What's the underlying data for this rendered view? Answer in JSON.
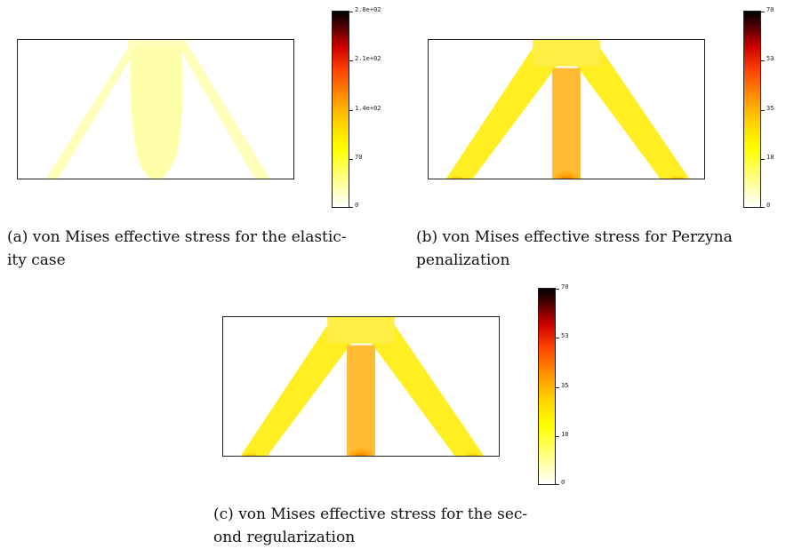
{
  "figure": {
    "panels": [
      {
        "id": "a",
        "caption": "(a) von Mises effective stress for the elastic-ity case",
        "caption_line1": "(a) von Mises effective stress for the elastic-",
        "caption_line2": "ity case",
        "colorbar_ticks": [
          "2.8e+02",
          "2.1e+02",
          "1.4e+02",
          "70",
          "0"
        ]
      },
      {
        "id": "b",
        "caption": "(b) von Mises effective stress for Perzyna penalization",
        "caption_line1": "(b) von Mises effective stress for Perzyna",
        "caption_line2": "penalization",
        "colorbar_ticks": [
          "70",
          "53",
          "35",
          "18",
          "0"
        ]
      },
      {
        "id": "c",
        "caption": "(c) von Mises effective stress for the second regularization",
        "caption_line1": "(c) von Mises effective stress for the sec-",
        "caption_line2": "ond regularization",
        "colorbar_ticks": [
          "70",
          "53",
          "35",
          "18",
          "0"
        ]
      }
    ],
    "colors": {
      "low": "#ffffff",
      "yellow": "#ffff00",
      "orange": "#ff9900",
      "red": "#cc0000",
      "high": "#000000"
    }
  }
}
